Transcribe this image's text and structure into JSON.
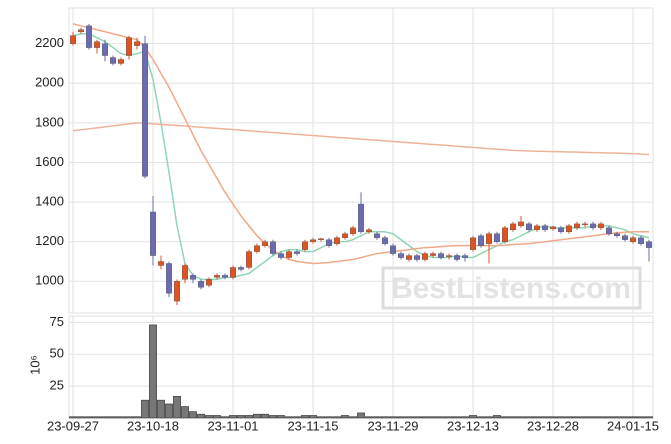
{
  "chart_data": [
    {
      "type": "candlestick",
      "watermark": "BestListens.com",
      "up_color": "#e0521f",
      "down_color": "#6b6bb5",
      "open": [
        2200,
        2260,
        2290,
        2180,
        2200,
        2130,
        2100,
        2140,
        2190,
        2200,
        1350,
        1080,
        1090,
        900,
        1010,
        1030,
        1000,
        980,
        1020,
        1030,
        1020,
        1070,
        1070,
        1150,
        1180,
        1200,
        1140,
        1120,
        1150,
        1160,
        1200,
        1210,
        1210,
        1190,
        1220,
        1240,
        1390,
        1250,
        1240,
        1220,
        1180,
        1140,
        1110,
        1130,
        1110,
        1130,
        1140,
        1125,
        1130,
        1130,
        1160,
        1230,
        1190,
        1240,
        1200,
        1260,
        1280,
        1290,
        1260,
        1280,
        1265,
        1270,
        1250,
        1270,
        1285,
        1290,
        1270,
        1270,
        1240,
        1230,
        1200,
        1220,
        1200
      ],
      "high": [
        2260,
        2280,
        2300,
        2220,
        2220,
        2140,
        2130,
        2240,
        2230,
        2240,
        1430,
        1130,
        1100,
        1010,
        1090,
        1040,
        1010,
        1020,
        1040,
        1040,
        1080,
        1080,
        1160,
        1190,
        1210,
        1210,
        1150,
        1160,
        1160,
        1210,
        1220,
        1220,
        1220,
        1230,
        1250,
        1280,
        1450,
        1270,
        1250,
        1230,
        1190,
        1150,
        1140,
        1140,
        1150,
        1150,
        1150,
        1140,
        1140,
        1140,
        1230,
        1240,
        1250,
        1250,
        1280,
        1300,
        1330,
        1300,
        1290,
        1290,
        1280,
        1280,
        1290,
        1300,
        1300,
        1300,
        1300,
        1280,
        1250,
        1240,
        1230,
        1230,
        1210
      ],
      "low": [
        2190,
        2250,
        2170,
        2150,
        2110,
        2090,
        2090,
        2120,
        2170,
        1520,
        1080,
        1060,
        920,
        880,
        990,
        990,
        960,
        970,
        1010,
        1010,
        1010,
        1050,
        1060,
        1140,
        1170,
        1130,
        1110,
        1110,
        1130,
        1150,
        1190,
        1200,
        1170,
        1180,
        1210,
        1230,
        1240,
        1240,
        1210,
        1180,
        1130,
        1110,
        1100,
        1100,
        1100,
        1120,
        1110,
        1110,
        1100,
        1100,
        1150,
        1170,
        1090,
        1190,
        1190,
        1250,
        1270,
        1250,
        1250,
        1250,
        1255,
        1240,
        1240,
        1260,
        1275,
        1260,
        1260,
        1230,
        1220,
        1200,
        1190,
        1180,
        1100
      ],
      "close": [
        2240,
        2270,
        2180,
        2210,
        2140,
        2100,
        2120,
        2230,
        2210,
        1530,
        1130,
        1100,
        940,
        1000,
        1080,
        1010,
        970,
        1010,
        1030,
        1020,
        1070,
        1060,
        1150,
        1180,
        1200,
        1140,
        1120,
        1150,
        1140,
        1200,
        1210,
        1215,
        1180,
        1220,
        1240,
        1270,
        1250,
        1260,
        1220,
        1190,
        1140,
        1120,
        1130,
        1110,
        1140,
        1140,
        1120,
        1130,
        1110,
        1120,
        1220,
        1180,
        1240,
        1200,
        1270,
        1290,
        1300,
        1260,
        1280,
        1260,
        1275,
        1250,
        1280,
        1290,
        1290,
        1270,
        1290,
        1240,
        1230,
        1210,
        1220,
        1190,
        1170
      ],
      "series": [
        {
          "color": "#8fd6b4",
          "values": [
            2240,
            2250,
            2250,
            2230,
            2210,
            2180,
            2150,
            2140,
            2150,
            2160,
            2020,
            1800,
            1550,
            1280,
            1090,
            1030,
            1010,
            1010,
            1010,
            1020,
            1020,
            1030,
            1040,
            1070,
            1100,
            1130,
            1150,
            1160,
            1160,
            1150,
            1150,
            1170,
            1190,
            1200,
            1200,
            1210,
            1230,
            1250,
            1250,
            1250,
            1240,
            1210,
            1180,
            1150,
            1130,
            1120,
            1120,
            1120,
            1130,
            1120,
            1120,
            1140,
            1160,
            1180,
            1200,
            1210,
            1230,
            1250,
            1270,
            1280,
            1270,
            1270,
            1270,
            1270,
            1270,
            1280,
            1280,
            1280,
            1270,
            1260,
            1240,
            1230,
            1220
          ]
        },
        {
          "color": "#eea98a",
          "values": [
            2300,
            2290,
            2280,
            2270,
            2260,
            2250,
            2240,
            2230,
            2220,
            2180,
            2120,
            2050,
            1980,
            1900,
            1820,
            1740,
            1660,
            1590,
            1520,
            1450,
            1390,
            1330,
            1280,
            1230,
            1190,
            1160,
            1130,
            1110,
            1100,
            1095,
            1090,
            1092,
            1095,
            1100,
            1105,
            1110,
            1120,
            1130,
            1140,
            1145,
            1150,
            1155,
            1160,
            1165,
            1170,
            1172,
            1175,
            1178,
            1180,
            1180,
            1180,
            1180,
            1180,
            1180,
            1182,
            1185,
            1188,
            1190,
            1195,
            1200,
            1205,
            1210,
            1215,
            1220,
            1225,
            1230,
            1235,
            1240,
            1245,
            1248,
            1250,
            1250,
            1250
          ]
        },
        {
          "color": "#eeb398",
          "values": [
            1760,
            1765,
            1770,
            1775,
            1780,
            1785,
            1790,
            1795,
            1800,
            1798,
            1795,
            1792,
            1790,
            1787,
            1784,
            1781,
            1778,
            1775,
            1772,
            1769,
            1766,
            1763,
            1760,
            1757,
            1754,
            1751,
            1748,
            1745,
            1742,
            1739,
            1736,
            1733,
            1730,
            1727,
            1724,
            1721,
            1718,
            1715,
            1712,
            1709,
            1706,
            1703,
            1700,
            1697,
            1694,
            1691,
            1688,
            1685,
            1682,
            1679,
            1676,
            1673,
            1670,
            1667,
            1664,
            1661,
            1660,
            1658,
            1657,
            1656,
            1655,
            1654,
            1653,
            1652,
            1651,
            1650,
            1649,
            1648,
            1647,
            1646,
            1645,
            1642,
            1640
          ]
        }
      ],
      "ylim": [
        840,
        2380
      ],
      "yticks": [
        1000,
        1200,
        1400,
        1600,
        1800,
        2000,
        2200
      ],
      "grid": true
    },
    {
      "type": "bar",
      "y_label": "10⁶",
      "color": "#777777",
      "categories": [
        "23-09-27",
        null,
        null,
        null,
        null,
        null,
        null,
        null,
        null,
        null,
        "23-10-18",
        null,
        null,
        null,
        null,
        null,
        null,
        null,
        null,
        null,
        "23-11-01",
        null,
        null,
        null,
        null,
        null,
        null,
        null,
        null,
        null,
        "23-11-15",
        null,
        null,
        null,
        null,
        null,
        null,
        null,
        null,
        null,
        "23-11-29",
        null,
        null,
        null,
        null,
        null,
        null,
        null,
        null,
        null,
        "23-12-13",
        null,
        null,
        null,
        null,
        null,
        null,
        null,
        null,
        null,
        "23-12-28",
        null,
        null,
        null,
        null,
        null,
        null,
        null,
        null,
        null,
        "24-01-15",
        null,
        null
      ],
      "values": [
        1,
        1,
        1,
        1,
        1,
        1,
        1,
        1,
        1,
        14,
        73,
        14,
        11,
        17,
        9,
        5,
        3,
        2,
        2,
        1,
        2,
        2,
        2,
        3,
        3,
        2,
        2,
        1,
        1,
        2,
        2,
        1,
        1,
        1,
        2,
        1,
        4,
        1,
        1,
        1,
        1,
        1,
        1,
        1,
        1,
        1,
        1,
        1,
        1,
        1,
        2,
        1,
        1,
        2,
        1,
        1,
        1,
        1,
        1,
        1,
        1,
        1,
        1,
        1,
        1,
        1,
        1,
        1,
        1,
        1,
        1,
        1,
        1
      ],
      "ylim": [
        0,
        80
      ],
      "yticks": [
        25,
        50,
        75
      ],
      "grid": true
    }
  ]
}
